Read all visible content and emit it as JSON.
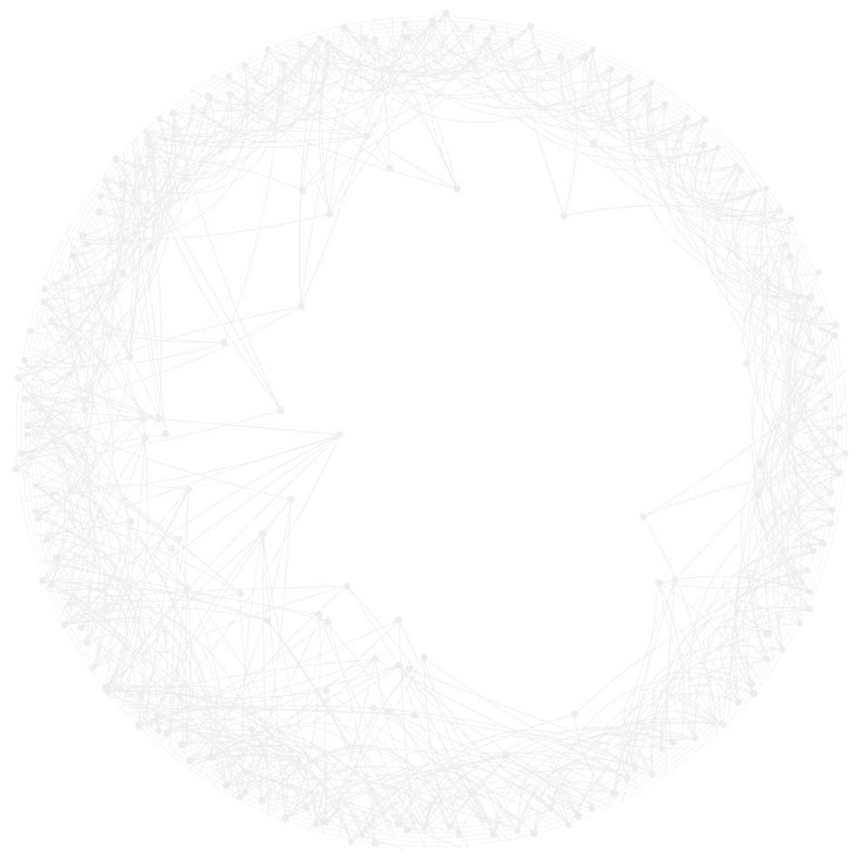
{
  "graphic": {
    "icon": "circular-network-graph",
    "background_color": "#ffffff",
    "line_color": "#eeeeee",
    "node_color": "#eeeeee"
  }
}
